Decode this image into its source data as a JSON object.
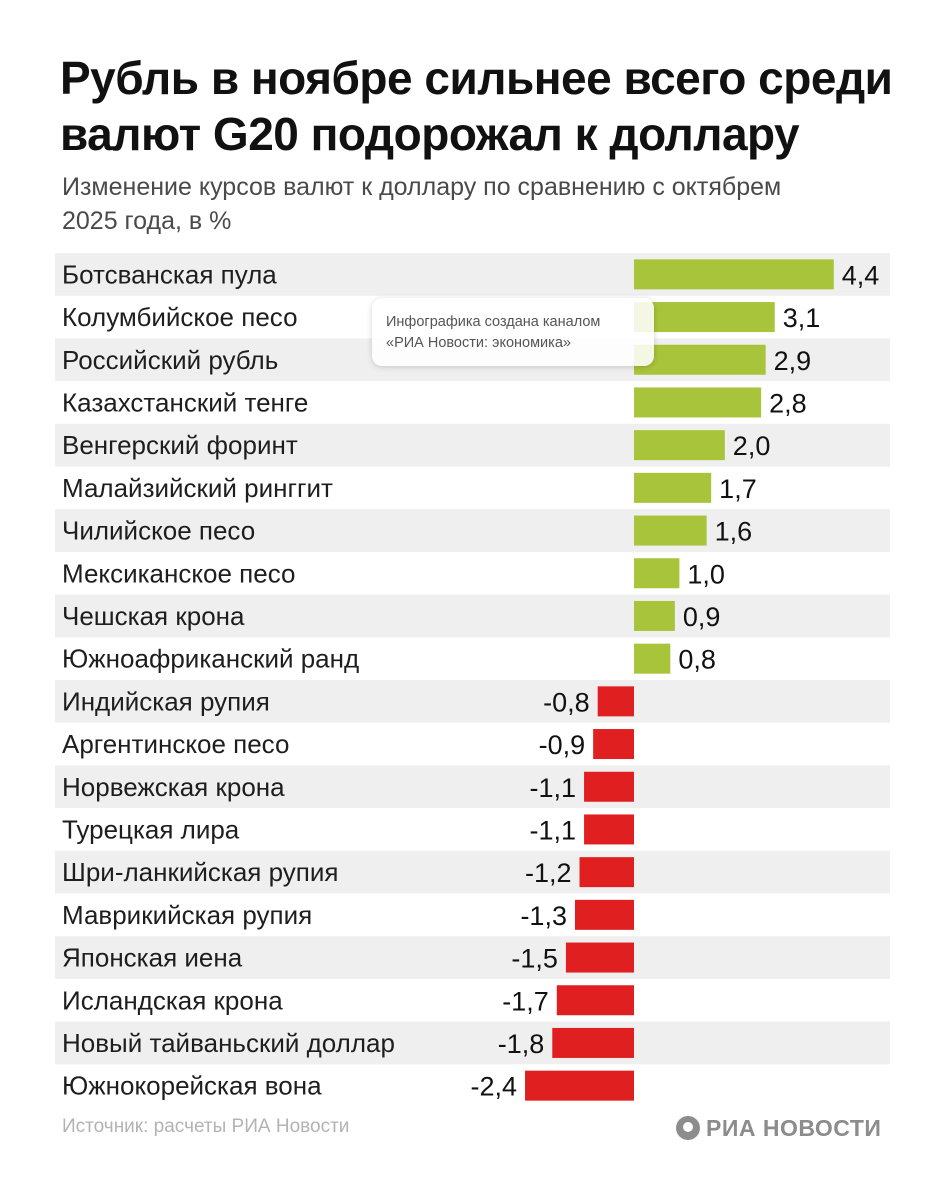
{
  "title": "Рубль в ноябре сильнее всего среди валют G20 подорожал к доллару",
  "subtitle": "Изменение курсов валют к доллару по сравнению с октябрем 2025 года, в %",
  "watermark": {
    "line1": "Инфографика создана каналом",
    "line2": "«РИА Новости: экономика»"
  },
  "source": "Источник: расчеты РИА Новости",
  "logo_text": "РИА НОВОСТИ",
  "colors": {
    "positive": "#a8c43a",
    "negative": "#e02020",
    "row_stripe": "#efefef"
  },
  "chart_data": {
    "type": "bar",
    "orientation": "horizontal",
    "categories": [
      "Ботсванская пула",
      "Колумбийское песо",
      "Российский рубль",
      "Казахстанский тенге",
      "Венгерский форинт",
      "Малайзийский ринггит",
      "Чилийское песо",
      "Мексиканское песо",
      "Чешская крона",
      "Южноафриканский ранд",
      "Индийская рупия",
      "Аргентинское песо",
      "Норвежская крона",
      "Турецкая лира",
      "Шри-ланкийская рупия",
      "Маврикийская рупия",
      "Японская иена",
      "Исландская крона",
      "Новый тайваньский доллар",
      "Южнокорейская вона"
    ],
    "values": [
      4.4,
      3.1,
      2.9,
      2.8,
      2.0,
      1.7,
      1.6,
      1.0,
      0.9,
      0.8,
      -0.8,
      -0.9,
      -1.1,
      -1.1,
      -1.2,
      -1.3,
      -1.5,
      -1.7,
      -1.8,
      -2.4
    ],
    "value_labels": [
      "4,4",
      "3,1",
      "2,9",
      "2,8",
      "2,0",
      "1,7",
      "1,6",
      "1,0",
      "0,9",
      "0,8",
      "-0,8",
      "-0,9",
      "-1,1",
      "-1,1",
      "-1,2",
      "-1,3",
      "-1,5",
      "-1,7",
      "-1,8",
      "-2,4"
    ],
    "title": "Рубль в ноябре сильнее всего среди валют G20 подорожал к доллару",
    "subtitle": "Изменение курсов валют к доллару по сравнению с октябрем 2025 года, в %",
    "xlabel": "",
    "ylabel": "",
    "grid": false,
    "legend": "none"
  }
}
